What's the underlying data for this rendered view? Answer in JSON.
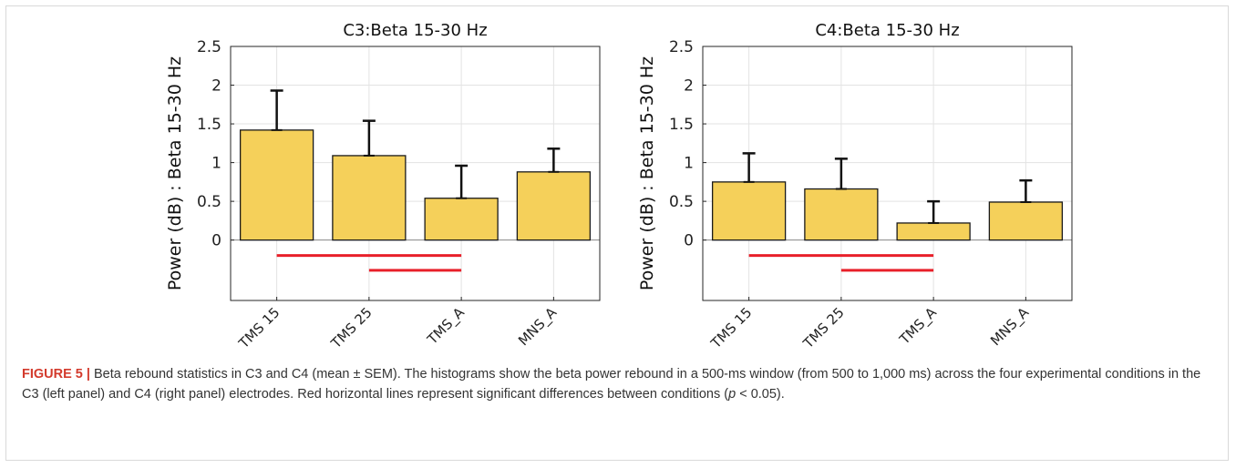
{
  "chart_data": [
    {
      "type": "bar",
      "title": "C3:Beta 15-30 Hz",
      "ylabel": "Power (dB) : Beta 15-30 Hz",
      "categories": [
        "TMS 15",
        "TMS 25",
        "TMS_A",
        "MNS_A"
      ],
      "values": [
        1.42,
        1.09,
        0.54,
        0.88
      ],
      "errors": [
        0.51,
        0.45,
        0.42,
        0.3
      ],
      "ylim": [
        -0.78,
        2.5
      ],
      "yticks": [
        "0",
        "0.5",
        "1",
        "1.5",
        "2",
        "2.5"
      ],
      "grid": true,
      "significance_lines": [
        {
          "from": "TMS 15",
          "to": "TMS_A",
          "y": -0.2
        },
        {
          "from": "TMS 25",
          "to": "TMS_A",
          "y": -0.39
        }
      ],
      "bar_color": "#f5d05a",
      "significance_color": "#e8202a"
    },
    {
      "type": "bar",
      "title": "C4:Beta 15-30 Hz",
      "ylabel": "Power (dB) : Beta 15-30 Hz",
      "categories": [
        "TMS 15",
        "TMS 25",
        "TMS_A",
        "MNS_A"
      ],
      "values": [
        0.75,
        0.66,
        0.22,
        0.49
      ],
      "errors": [
        0.37,
        0.39,
        0.28,
        0.28
      ],
      "ylim": [
        -0.78,
        2.5
      ],
      "yticks": [
        "0",
        "0.5",
        "1",
        "1.5",
        "2",
        "2.5"
      ],
      "grid": true,
      "significance_lines": [
        {
          "from": "TMS 15",
          "to": "TMS_A",
          "y": -0.2
        },
        {
          "from": "TMS 25",
          "to": "TMS_A",
          "y": -0.39
        }
      ],
      "bar_color": "#f5d05a",
      "significance_color": "#e8202a"
    }
  ],
  "caption": {
    "label": "FIGURE 5",
    "separator": "|",
    "text_1": "Beta rebound statistics in C3 and C4 (mean ± SEM). The histograms show the beta power rebound in a 500-ms window (from 500 to 1,000 ms) across the four experimental conditions in the C3 (left panel) and C4 (right panel) electrodes. Red horizontal lines represent significant differences between conditions (",
    "p_symbol": "p",
    "text_2": " < 0.05)."
  }
}
